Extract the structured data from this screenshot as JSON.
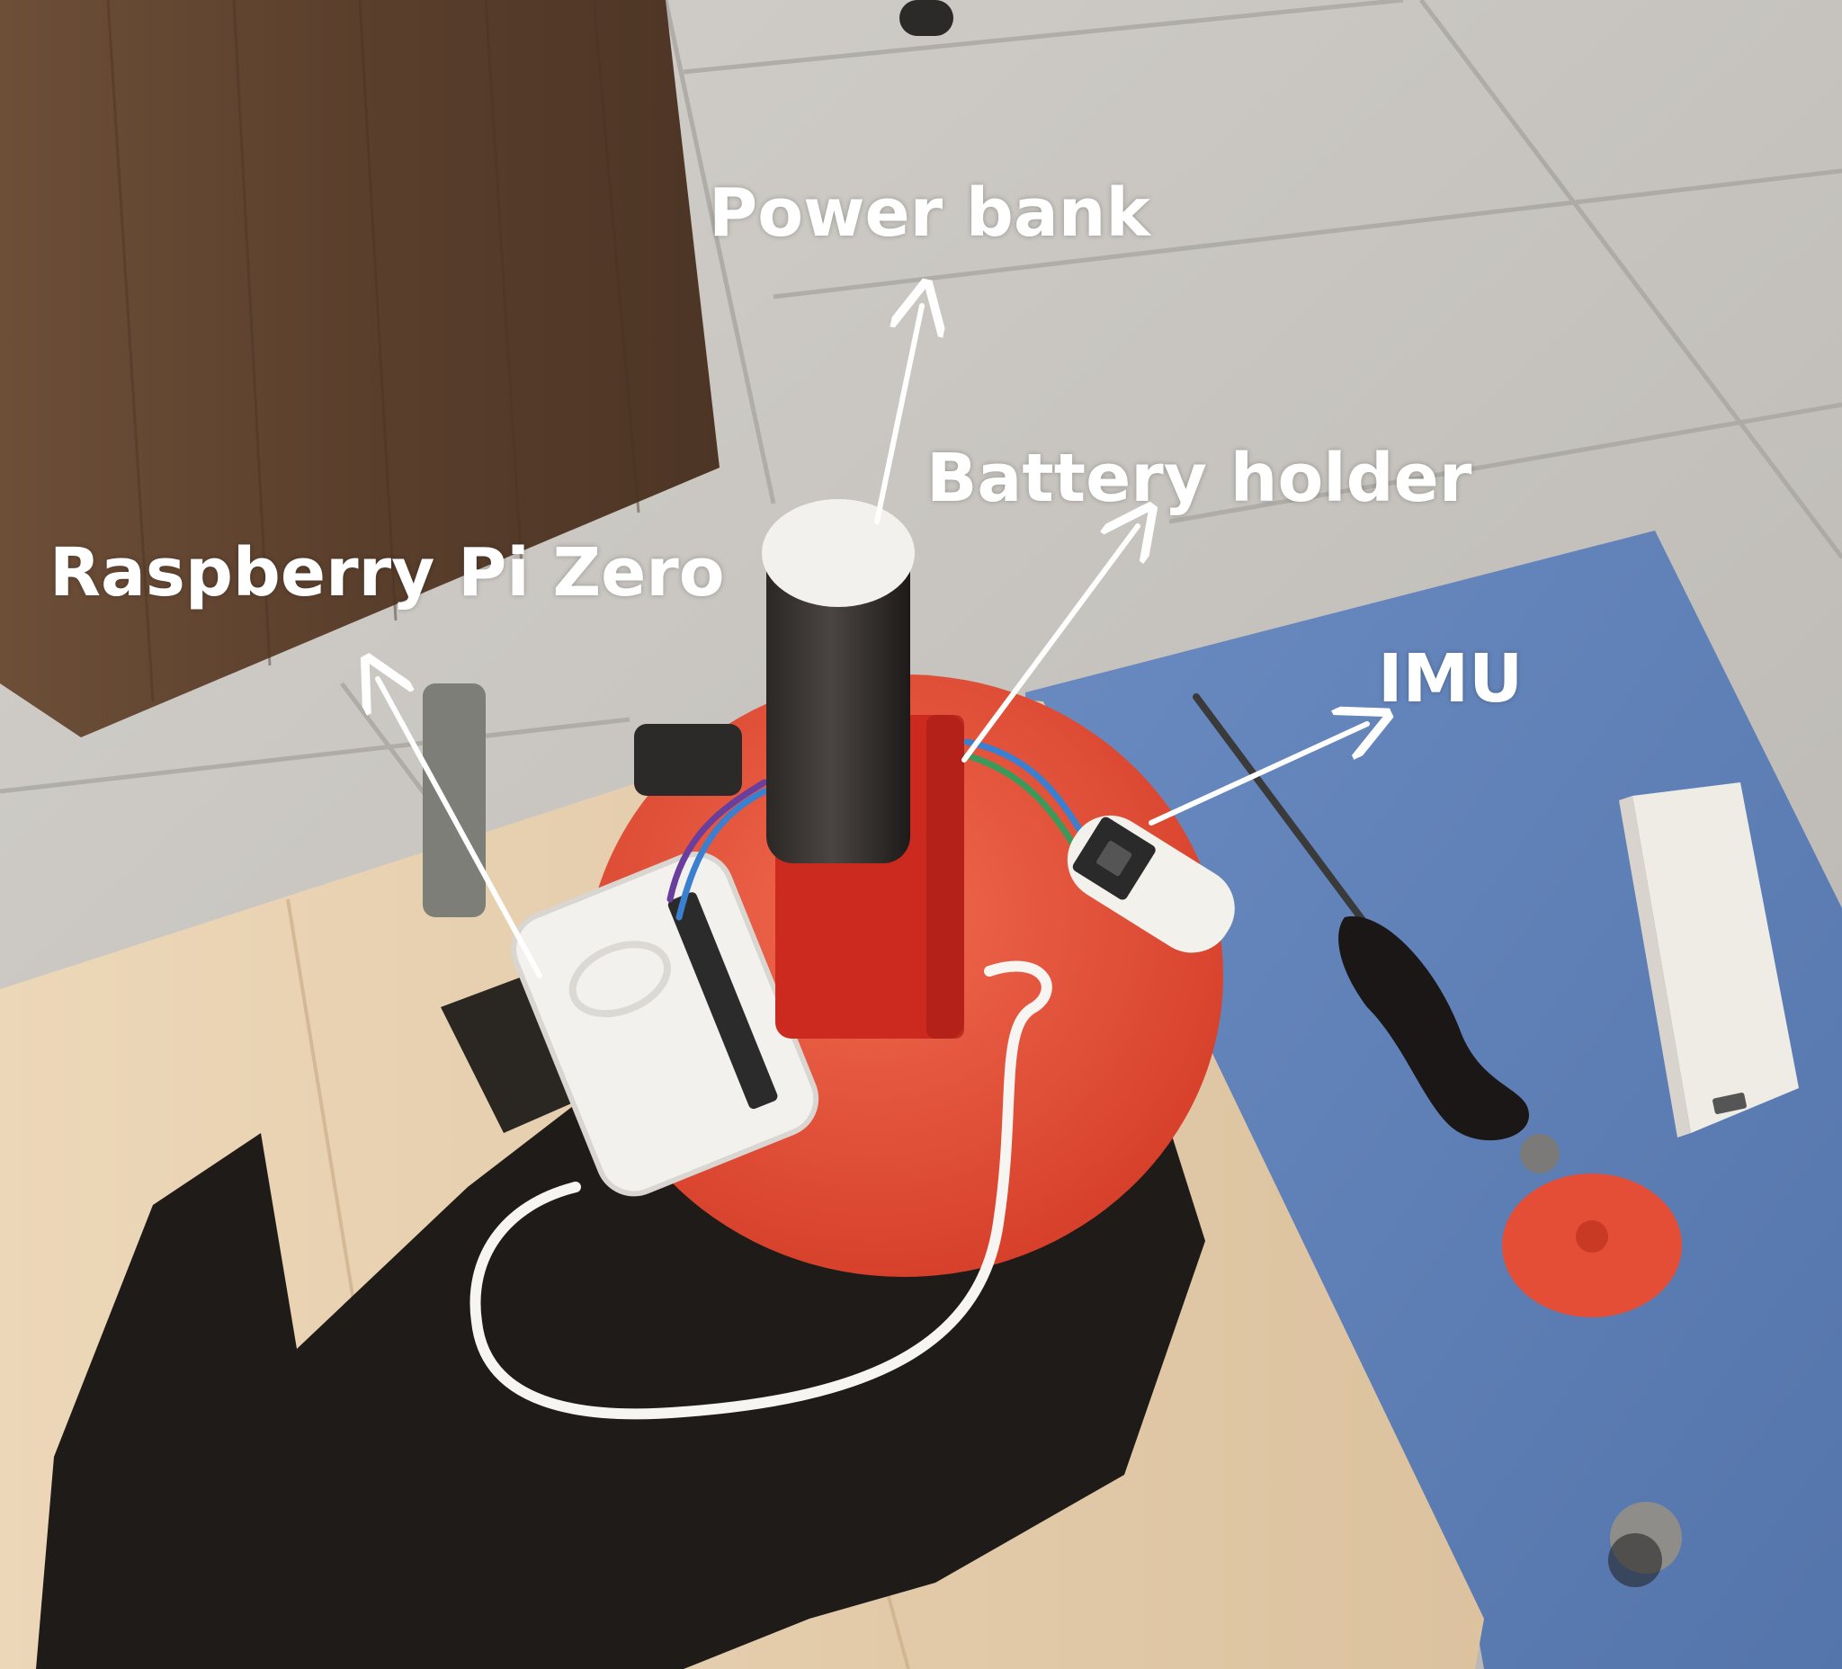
{
  "labels": {
    "power_bank": "Power bank",
    "battery_holder": "Battery holder",
    "raspberry_pi": "Raspberry Pi Zero",
    "imu": "IMU"
  },
  "colors": {
    "label_text": "#ffffff",
    "arrow": "#ffffff",
    "floor_tile": "#c9c6c1",
    "wood_cabinet": "#5e4330",
    "blue_board": "#5d7fb5",
    "wood_board": "#e6cfae",
    "red_disc": "#e3452f",
    "black_cloth": "#1e1b18",
    "white_case": "#f3f1ee"
  }
}
